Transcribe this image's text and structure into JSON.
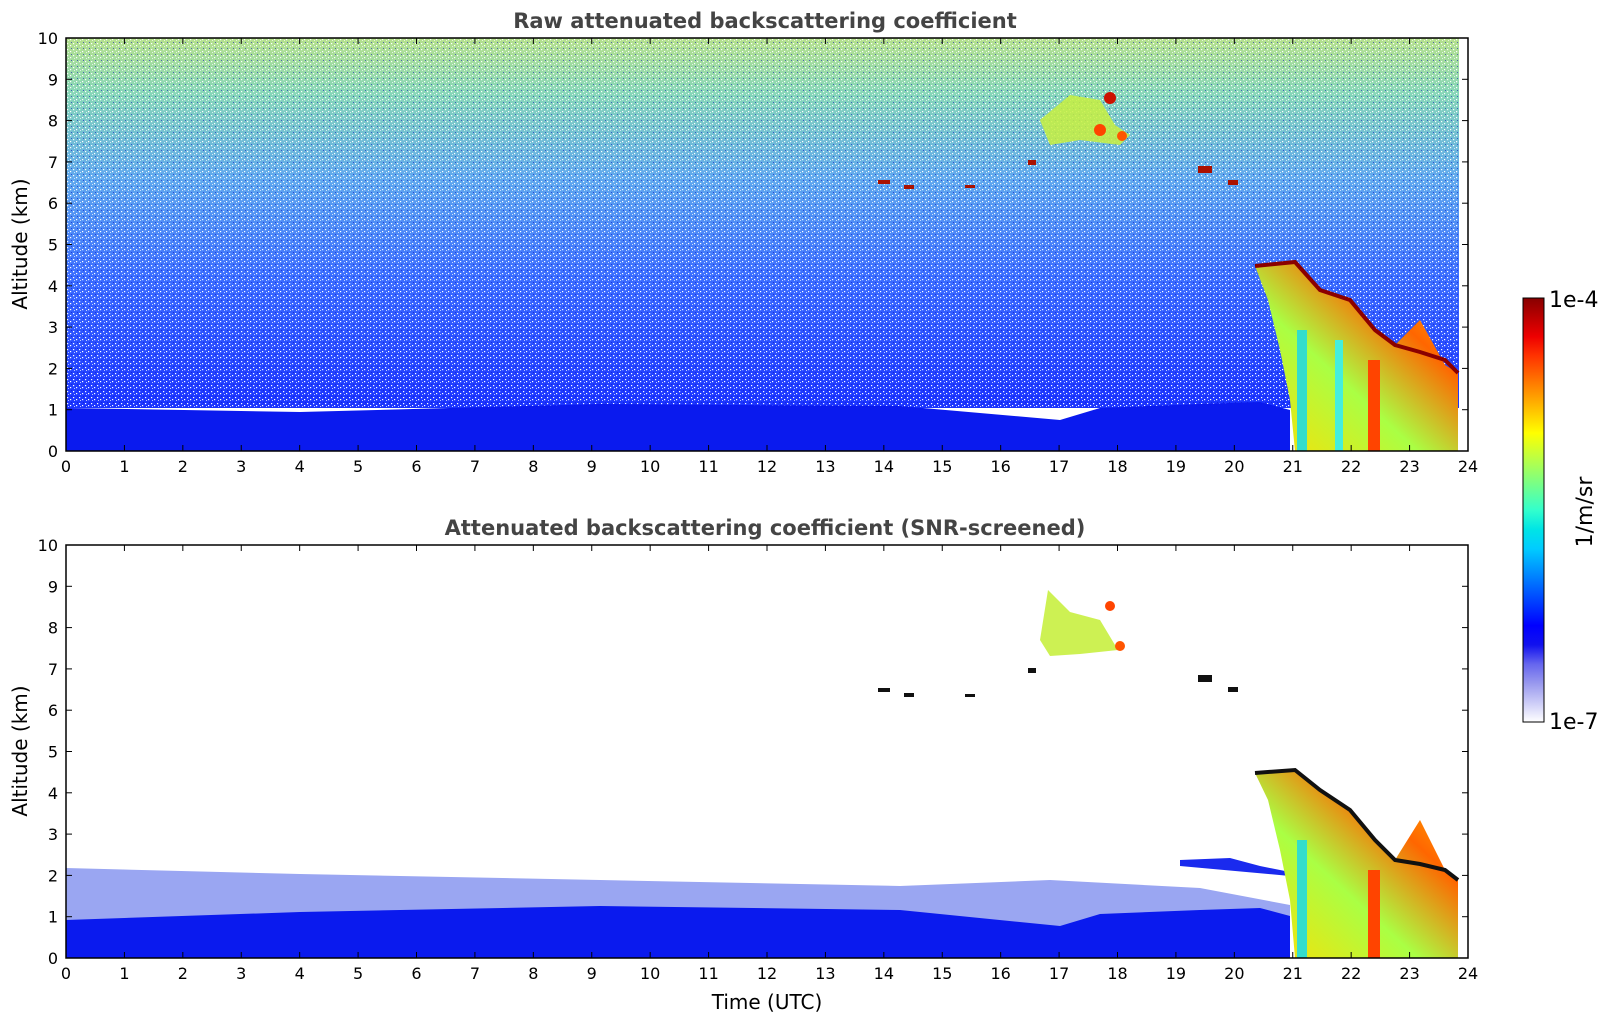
{
  "chart_data": [
    {
      "type": "heatmap",
      "title": "Raw attenuated backscattering coefficient",
      "xlabel": "",
      "ylabel": "Altitude (km)",
      "xlim": [
        0,
        24
      ],
      "ylim": [
        0,
        10
      ],
      "xticks": [
        "0",
        "1",
        "2",
        "3",
        "4",
        "5",
        "6",
        "7",
        "8",
        "9",
        "10",
        "11",
        "12",
        "13",
        "14",
        "15",
        "16",
        "17",
        "18",
        "19",
        "20",
        "21",
        "22",
        "23",
        "24"
      ],
      "yticks": [
        "0",
        "1",
        "2",
        "3",
        "4",
        "5",
        "6",
        "7",
        "8",
        "9",
        "10"
      ],
      "screened": false,
      "features": [
        {
          "label": "boundary layer",
          "x_range": [
            0,
            21
          ],
          "alt_range": [
            0,
            1.0
          ]
        },
        {
          "label": "noise background",
          "x_range": [
            0,
            23.8
          ],
          "alt_range": [
            1.0,
            10
          ]
        },
        {
          "label": "cirrus layer",
          "x_range": [
            16.6,
            18.2
          ],
          "alt_range": [
            7.4,
            8.8
          ]
        },
        {
          "label": "thin cloud patches",
          "x_range": [
            13.8,
            20.2
          ],
          "alt_range": [
            6.2,
            7.0
          ]
        },
        {
          "label": "deep cloud",
          "x_range": [
            20.5,
            23.8
          ],
          "alt_range": [
            0,
            4.6
          ]
        }
      ]
    },
    {
      "type": "heatmap",
      "title": "Attenuated backscattering coefficient (SNR-screened)",
      "xlabel": "Time (UTC)",
      "ylabel": "Altitude (km)",
      "xlim": [
        0,
        24
      ],
      "ylim": [
        0,
        10
      ],
      "xticks": [
        "0",
        "1",
        "2",
        "3",
        "4",
        "5",
        "6",
        "7",
        "8",
        "9",
        "10",
        "11",
        "12",
        "13",
        "14",
        "15",
        "16",
        "17",
        "18",
        "19",
        "20",
        "21",
        "22",
        "23",
        "24"
      ],
      "yticks": [
        "0",
        "1",
        "2",
        "3",
        "4",
        "5",
        "6",
        "7",
        "8",
        "9",
        "10"
      ],
      "screened": true,
      "features": [
        {
          "label": "boundary layer",
          "x_range": [
            0,
            21
          ],
          "alt_range": [
            0,
            1.3
          ]
        },
        {
          "label": "cirrus layer",
          "x_range": [
            16.6,
            18.2
          ],
          "alt_range": [
            7.4,
            9.2
          ]
        },
        {
          "label": "thin cloud patches",
          "x_range": [
            13.8,
            20.2
          ],
          "alt_range": [
            6.2,
            7.0
          ]
        },
        {
          "label": "deep cloud",
          "x_range": [
            20.5,
            23.8
          ],
          "alt_range": [
            0,
            4.6
          ]
        }
      ]
    }
  ],
  "colorbar": {
    "label": "1/m/sr",
    "max_label": "1e-4",
    "min_label": "1e-7",
    "range": [
      1e-07,
      0.0001
    ],
    "scale": "log",
    "colors": [
      "#ffffff",
      "#ccccf7",
      "#9999ee",
      "#6666ee",
      "#1111ee",
      "#0000ff",
      "#0033ff",
      "#0066ff",
      "#0099ff",
      "#00ccff",
      "#00e5e5",
      "#33ffcc",
      "#66ff99",
      "#99ff66",
      "#ccff33",
      "#ffff00",
      "#ffcc00",
      "#ff9900",
      "#ff6600",
      "#ff3300",
      "#ee0000",
      "#bb0000",
      "#880000"
    ]
  }
}
